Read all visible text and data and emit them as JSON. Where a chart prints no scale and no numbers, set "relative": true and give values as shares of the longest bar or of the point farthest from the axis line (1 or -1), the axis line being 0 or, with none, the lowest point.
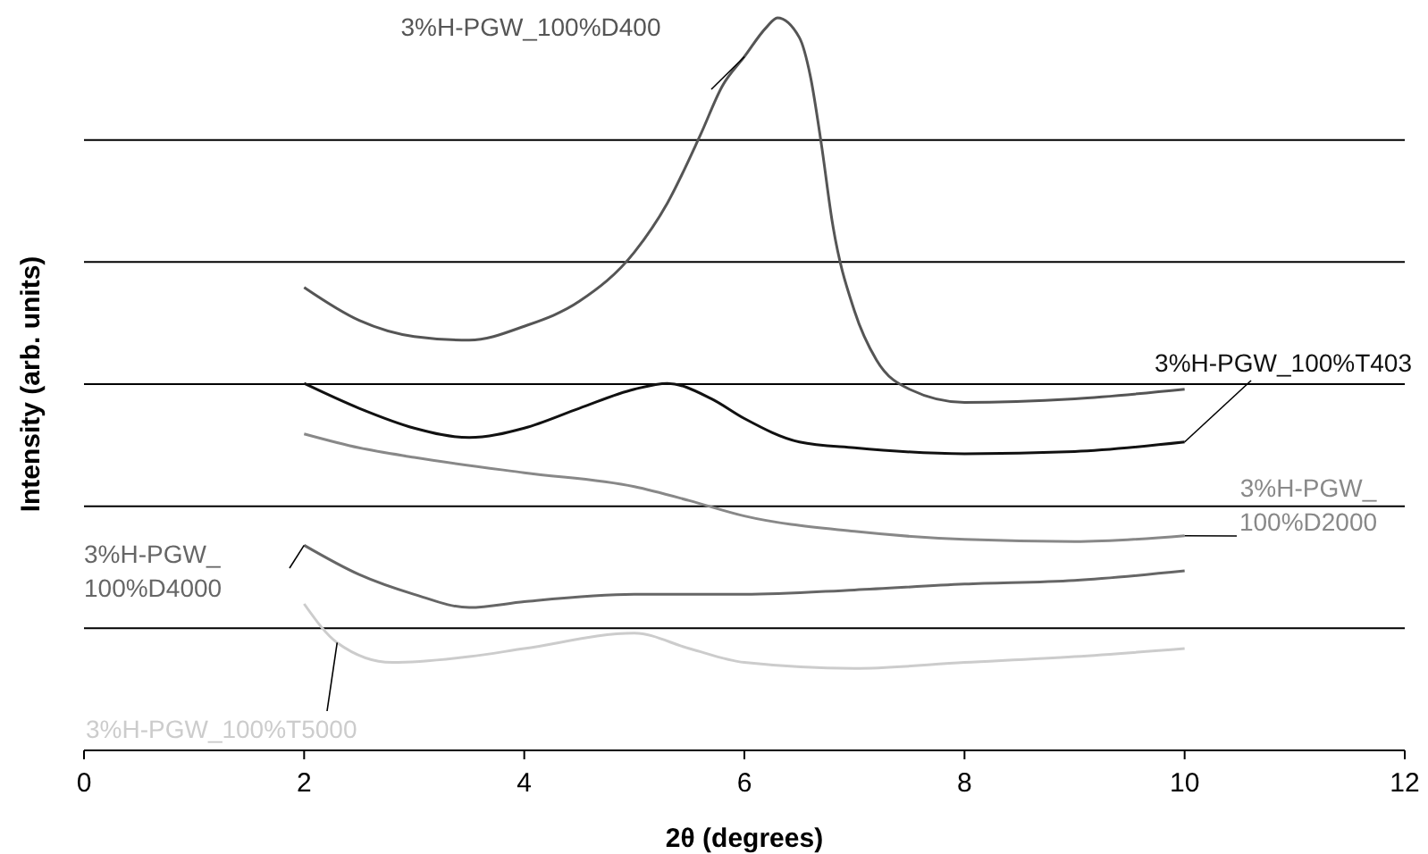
{
  "chart_data": {
    "type": "line",
    "xlabel": "2θ (degrees)",
    "ylabel": "Intensity (arb. units)",
    "relative": true,
    "grid": "y",
    "marker": "none",
    "line_style": "solid",
    "xlim": [
      0,
      12
    ],
    "xticks": [
      0,
      2,
      4,
      6,
      8,
      10,
      12
    ],
    "series": [
      {
        "name": "3%H-PGW_100%D400",
        "color": "#555555",
        "x": [
          2,
          2.5,
          3,
          3.5,
          4,
          4.5,
          5,
          5.3,
          5.6,
          5.8,
          6,
          6.2,
          6.3,
          6.5,
          6.6,
          6.7,
          6.8,
          7,
          7.2,
          7.5,
          8,
          9,
          10
        ],
        "values": [
          0.632,
          0.587,
          0.565,
          0.56,
          0.579,
          0.613,
          0.68,
          0.747,
          0.84,
          0.907,
          0.947,
          0.987,
          1,
          0.973,
          0.92,
          0.827,
          0.72,
          0.6,
          0.533,
          0.493,
          0.475,
          0.48,
          0.493
        ]
      },
      {
        "name": "3%H-PGW_100%T403",
        "color": "#111111",
        "x": [
          2,
          2.5,
          3,
          3.5,
          4,
          4.5,
          5,
          5.3,
          5.7,
          6,
          6.5,
          7,
          8,
          9,
          10
        ],
        "values": [
          0.501,
          0.467,
          0.44,
          0.427,
          0.44,
          0.467,
          0.493,
          0.501,
          0.48,
          0.453,
          0.421,
          0.413,
          0.405,
          0.408,
          0.421
        ]
      },
      {
        "name": "3%H-PGW_100%D2000",
        "color": "#888888",
        "x": [
          2,
          2.5,
          3,
          4,
          5,
          5.5,
          6,
          7,
          8,
          9,
          10
        ],
        "values": [
          0.432,
          0.413,
          0.4,
          0.379,
          0.36,
          0.341,
          0.32,
          0.299,
          0.288,
          0.285,
          0.293
        ]
      },
      {
        "name": "3%H-PGW_100%D4000",
        "color": "#666666",
        "x": [
          2,
          2.5,
          3,
          3.5,
          4,
          5,
          6,
          7,
          8,
          9,
          10
        ],
        "values": [
          0.28,
          0.24,
          0.213,
          0.195,
          0.203,
          0.213,
          0.213,
          0.219,
          0.227,
          0.232,
          0.245
        ]
      },
      {
        "name": "3%H-PGW_100%T5000",
        "color": "#cccccc",
        "x": [
          2,
          2.3,
          2.8,
          3.5,
          4,
          5,
          5.5,
          6,
          7,
          8,
          9,
          10
        ],
        "values": [
          0.2,
          0.147,
          0.12,
          0.128,
          0.139,
          0.16,
          0.139,
          0.12,
          0.112,
          0.12,
          0.128,
          0.139
        ]
      }
    ]
  }
}
